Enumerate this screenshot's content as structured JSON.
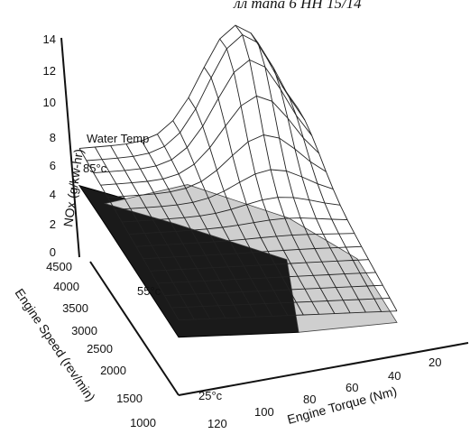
{
  "header": {
    "text": "лл mana 6 HH 15/14"
  },
  "chart_data": {
    "type": "surface3d",
    "title": "",
    "z_axis": {
      "label": "NOx (g/kw-hr)",
      "range": [
        0,
        14
      ],
      "ticks": [
        "0",
        "2",
        "4",
        "6",
        "8",
        "10",
        "12",
        "14"
      ]
    },
    "y_axis": {
      "label": "Engine Speed (rev/min)",
      "range": [
        1000,
        4500
      ],
      "ticks": [
        "1000",
        "1500",
        "2000",
        "2500",
        "3000",
        "3500",
        "4000",
        "4500"
      ]
    },
    "x_axis": {
      "label": "Engine Torque (Nm)",
      "range": [
        0,
        130
      ],
      "ticks": [
        "120",
        "100",
        "80",
        "60",
        "40",
        "20"
      ]
    },
    "series_label": "Water Temp",
    "surfaces": [
      {
        "name": "85°c",
        "style": "wireframe",
        "nox_at_max_speed_max_torque": 4.8,
        "nox_peak": 14.5
      },
      {
        "name": "55°c",
        "style": "shaded-light"
      },
      {
        "name": "25°c",
        "style": "shaded-dark"
      }
    ],
    "annotations": [
      "Water Temp",
      "85°c",
      "55°c",
      "25°c"
    ]
  }
}
